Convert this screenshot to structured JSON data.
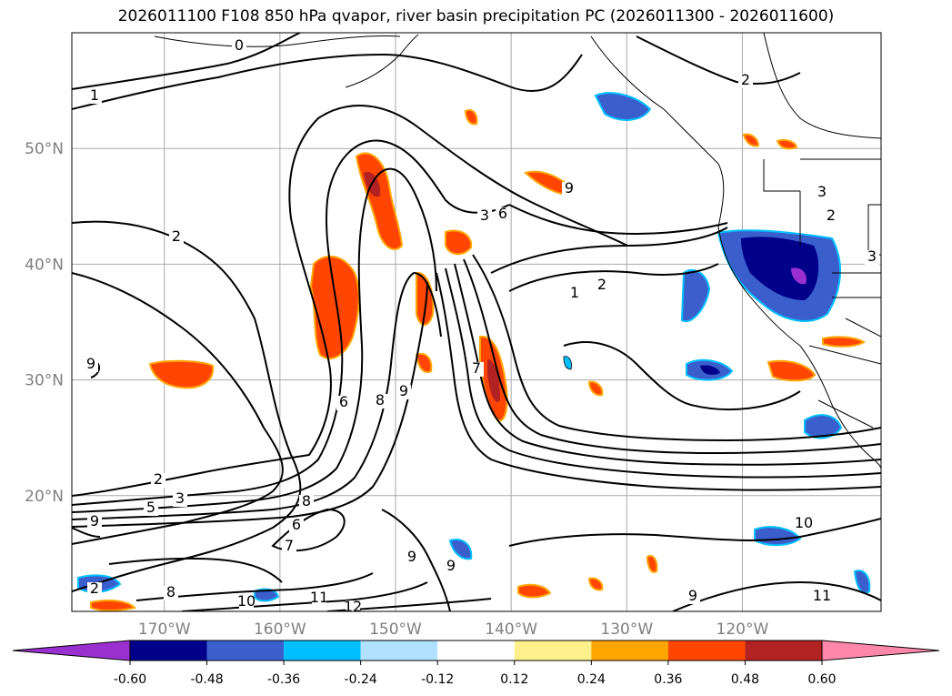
{
  "title": "2026011100 F108 850 hPa qvapor, river basin precipitation PC (2026011300 - 2026011600)",
  "map": {
    "lat_labels": [
      "50°N",
      "40°N",
      "30°N",
      "20°N"
    ],
    "lon_labels": [
      "170°W",
      "160°W",
      "150°W",
      "140°W",
      "130°W",
      "120°W"
    ],
    "lat_values": [
      50,
      40,
      30,
      20
    ],
    "lon_values": [
      -170,
      -160,
      -150,
      -140,
      -130,
      -120
    ],
    "extent": {
      "lon_min": -178,
      "lon_max": -108,
      "lat_min": 10,
      "lat_max": 60
    },
    "contour_labels": [
      "0",
      "1",
      "2",
      "2",
      "3",
      "2",
      "3",
      "6",
      "9",
      "1",
      "2",
      "7",
      "6",
      "8",
      "9",
      "9",
      "2",
      "3",
      "5",
      "9",
      "8",
      "6",
      "7",
      "9",
      "9",
      "8",
      "10",
      "11",
      "12",
      "9",
      "10",
      "11",
      "3",
      "2"
    ],
    "contour_levels": [
      0,
      1,
      2,
      3,
      5,
      6,
      7,
      8,
      9,
      10,
      11,
      12
    ]
  },
  "colorbar": {
    "ticks": [
      "-0.60",
      "-0.48",
      "-0.36",
      "-0.24",
      "-0.12",
      "0.12",
      "0.24",
      "0.36",
      "0.48",
      "0.60"
    ],
    "colors": [
      "#9b30d0",
      "#00008b",
      "#3a5fcd",
      "#00bfff",
      "#b0e2ff",
      "#ffffff",
      "#fff08c",
      "#ffa500",
      "#ff4500",
      "#b22222",
      "#ff88aa"
    ],
    "extend": "both"
  }
}
